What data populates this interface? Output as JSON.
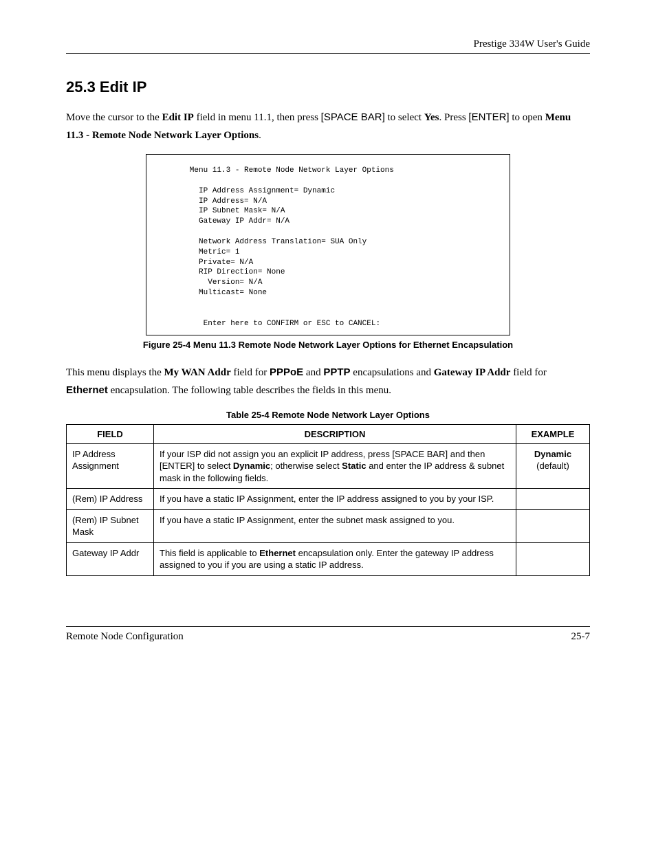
{
  "header": {
    "doc_title": "Prestige 334W User's Guide"
  },
  "section": {
    "heading": "25.3  Edit IP"
  },
  "intro": {
    "pre1": "Move the cursor to the ",
    "bold1": "Edit IP",
    "mid1": " field in menu 11.1, then press ",
    "sans1": "[SPACE BAR]",
    "mid2": " to select ",
    "bold2": "Yes",
    "mid3": ". Press ",
    "sans2": "[ENTER]",
    "post": " to open ",
    "bold3": "Menu 11.3 - Remote Node Network Layer Options",
    "end": "."
  },
  "terminal": {
    "title": "        Menu 11.3 - Remote Node Network Layer Options",
    "l1": "          IP Address Assignment= Dynamic",
    "l2": "          IP Address= N/A",
    "l3": "          IP Subnet Mask= N/A",
    "l4": "          Gateway IP Addr= N/A",
    "l5": "          Network Address Translation= SUA Only",
    "l6": "          Metric= 1",
    "l7": "          Private= N/A",
    "l8": "          RIP Direction= None",
    "l9": "            Version= N/A",
    "l10": "          Multicast= None",
    "l11": "           Enter here to CONFIRM or ESC to CANCEL:"
  },
  "figure_caption": "Figure 25-4 Menu 11.3 Remote Node Network Layer Options for Ethernet Encapsulation",
  "desc": {
    "pre": "This menu displays the ",
    "bold1": "My WAN Addr",
    "mid1": " field for ",
    "sans1": "PPPoE",
    "mid2": " and ",
    "sans2": "PPTP",
    "mid3": " encapsulations and ",
    "bold2": "Gateway IP Addr",
    "mid4": " field for ",
    "sans3": "Ethernet",
    "post": " encapsulation.  The following table describes the fields in this menu."
  },
  "table": {
    "caption": "Table 25-4 Remote Node Network Layer Options",
    "headers": {
      "field": "FIELD",
      "description": "DESCRIPTION",
      "example": "EXAMPLE"
    },
    "rows": [
      {
        "field": "IP Address Assignment",
        "desc_pre": "If your ISP did not assign you an explicit IP address, press [SPACE BAR] and then [ENTER] to select ",
        "desc_b1": "Dynamic",
        "desc_mid": "; otherwise select ",
        "desc_b2": "Static",
        "desc_post": " and enter the IP address & subnet mask in the following fields.",
        "example_b": "Dynamic",
        "example_sub": "(default)"
      },
      {
        "field": "(Rem) IP Address",
        "desc": "If you have a static IP Assignment, enter the IP address assigned to you by your ISP.",
        "example": ""
      },
      {
        "field": "(Rem) IP Subnet Mask",
        "desc": "If you have a static IP Assignment, enter the subnet mask assigned to you.",
        "example": ""
      },
      {
        "field": "Gateway IP Addr",
        "desc_pre": "This field is applicable to ",
        "desc_b1": "Ethernet",
        "desc_post": " encapsulation only. Enter the gateway IP address assigned to you if you are using a static IP address.",
        "example": ""
      }
    ]
  },
  "footer": {
    "left": "Remote Node Configuration",
    "right": "25-7"
  }
}
